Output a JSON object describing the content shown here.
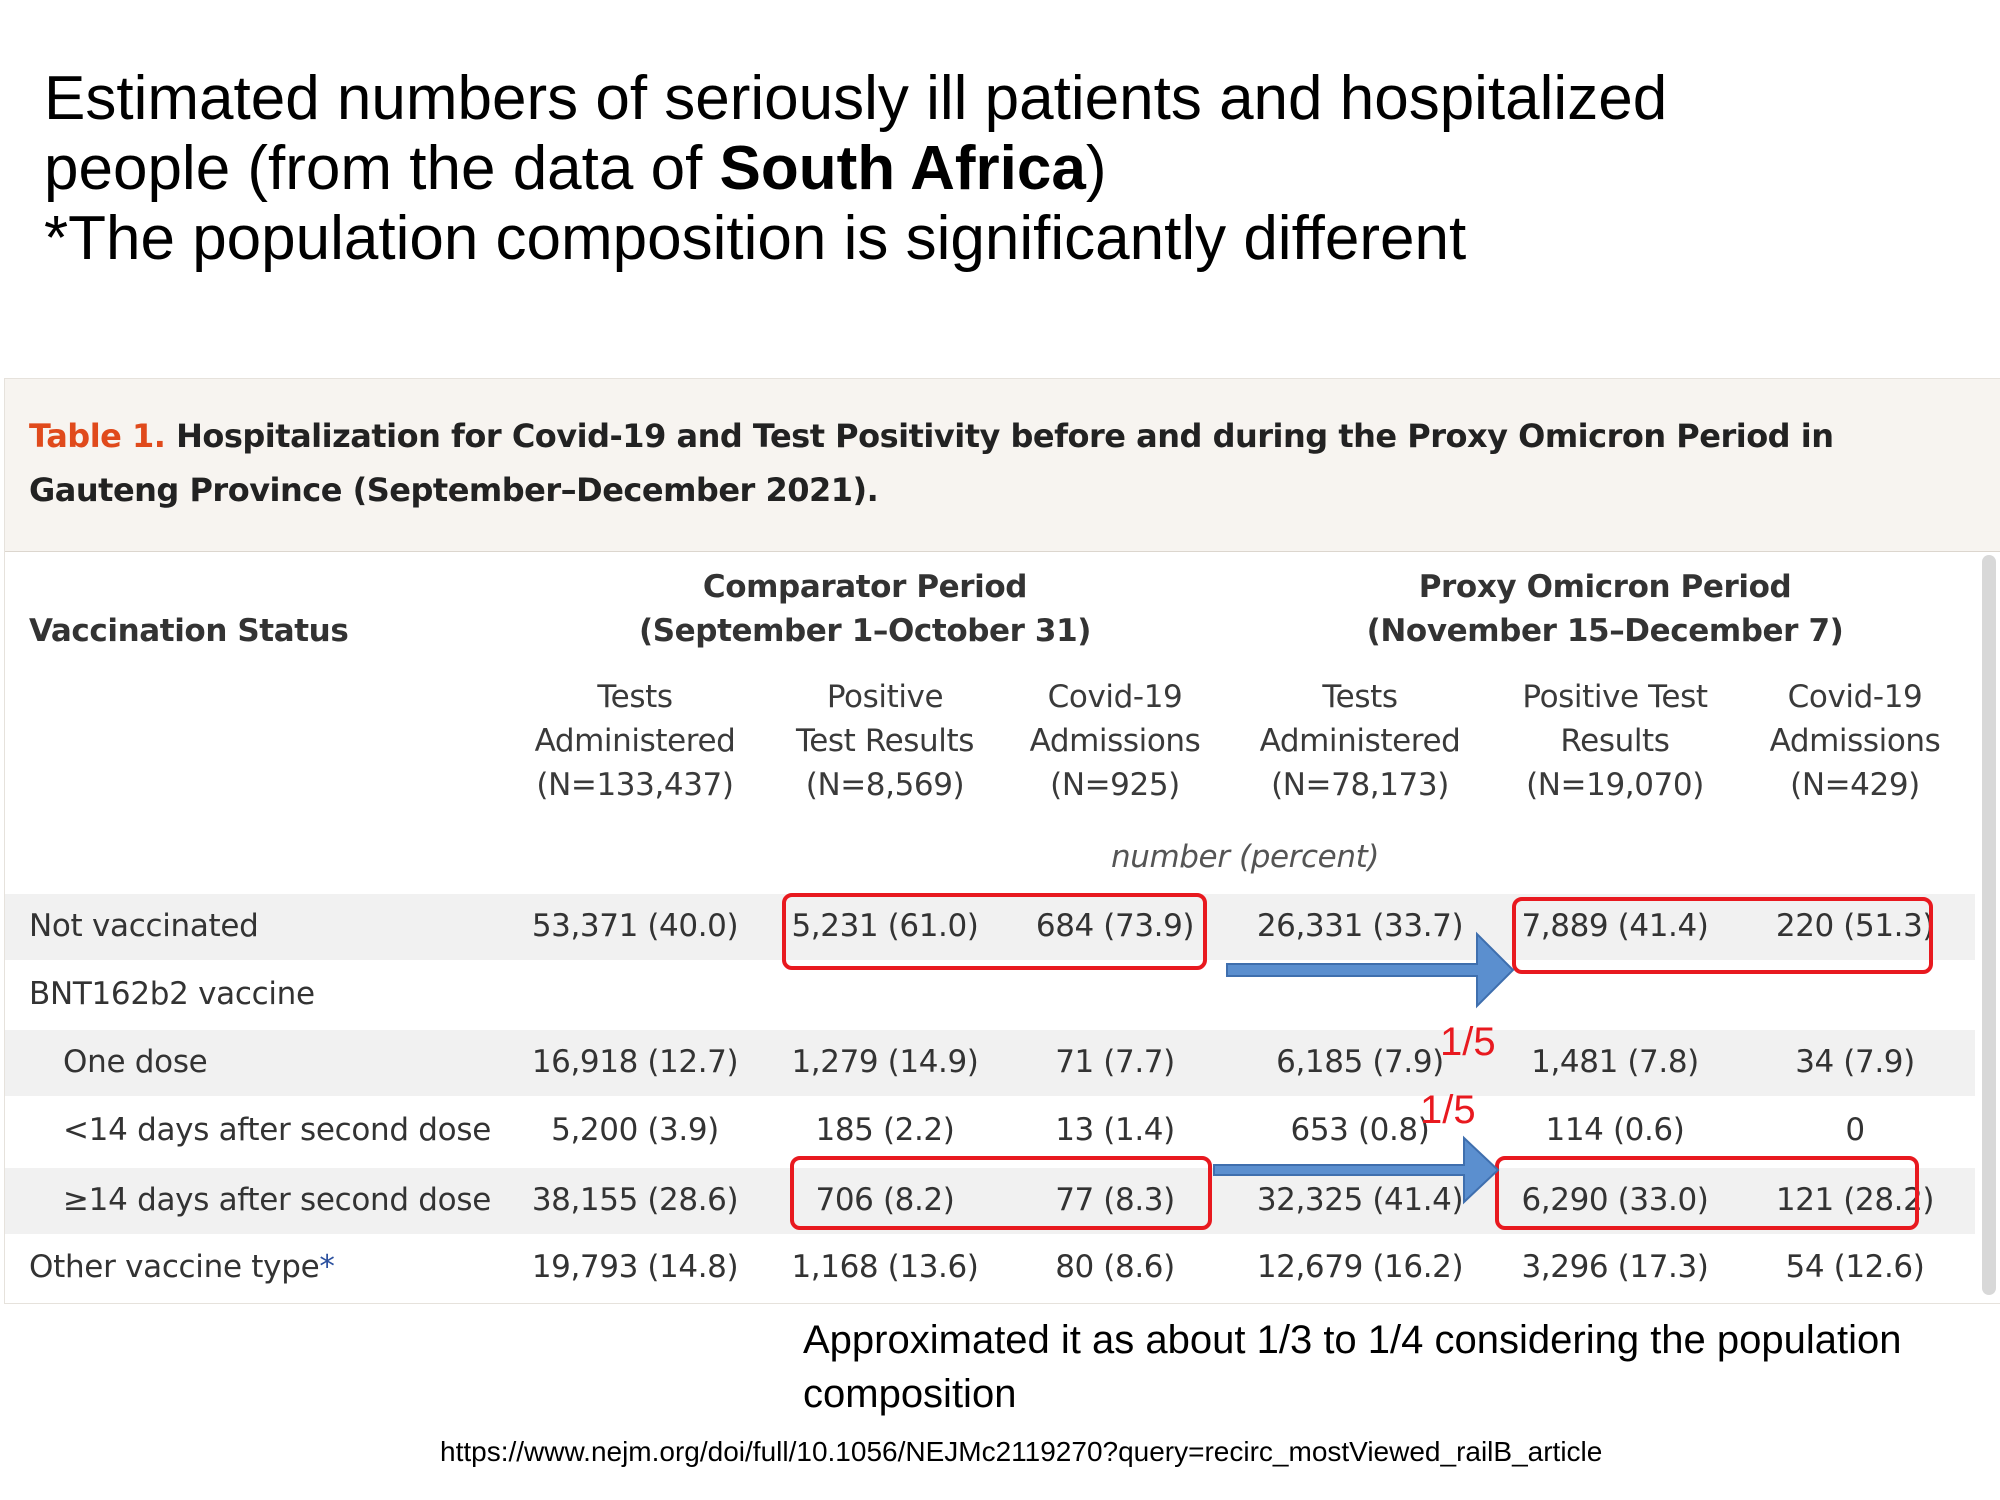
{
  "slide": {
    "title_line1": "Estimated numbers of seriously ill patients and hospitalized",
    "title_line2_pre": "people (from the data of ",
    "title_line2_bold": "South Africa",
    "title_line2_post": ")",
    "title_line3": "*The population composition is significantly different"
  },
  "table": {
    "caption_label": "Table 1.",
    "caption_text": "Hospitalization for Covid-19 and Test Positivity before and during the Proxy Omicron Period in Gauteng Province (September–December 2021).",
    "row_header": "Vaccination Status",
    "period1_name": "Comparator Period",
    "period1_dates": "(September 1–October 31)",
    "period2_name": "Proxy Omicron Period",
    "period2_dates": "(November 15–December 7)",
    "columns": [
      {
        "l1": "Tests",
        "l2": "Administered",
        "l3": "(N=133,437)"
      },
      {
        "l1": "Positive",
        "l2": "Test Results",
        "l3": "(N=8,569)"
      },
      {
        "l1": "Covid-19",
        "l2": "Admissions",
        "l3": "(N=925)"
      },
      {
        "l1": "Tests",
        "l2": "Administered",
        "l3": "(N=78,173)"
      },
      {
        "l1": "Positive Test",
        "l2": "Results",
        "l3": "(N=19,070)"
      },
      {
        "l1": "Covid-19",
        "l2": "Admissions",
        "l3": "(N=429)"
      }
    ],
    "units": "number (percent)",
    "rows": [
      {
        "label": "Not vaccinated",
        "cells": [
          "53,371 (40.0)",
          "5,231 (61.0)",
          "684 (73.9)",
          "26,331 (33.7)",
          "7,889 (41.4)",
          "220 (51.3)"
        ]
      },
      {
        "label": "BNT162b2 vaccine",
        "cells": [
          "",
          "",
          "",
          "",
          "",
          ""
        ]
      },
      {
        "label": "One dose",
        "cells": [
          "16,918 (12.7)",
          "1,279 (14.9)",
          "71 (7.7)",
          "6,185 (7.9)",
          "1,481 (7.8)",
          "34 (7.9)"
        ]
      },
      {
        "label": "<14 days after second dose",
        "cells": [
          "5,200 (3.9)",
          "185 (2.2)",
          "13 (1.4)",
          "653 (0.8)",
          "114 (0.6)",
          "0"
        ]
      },
      {
        "label": "≥14 days after second dose",
        "cells": [
          "38,155 (28.6)",
          "706 (8.2)",
          "77 (8.3)",
          "32,325 (41.4)",
          "6,290 (33.0)",
          "121 (28.2)"
        ]
      },
      {
        "label": "Other vaccine type",
        "label_mark": "*",
        "cells": [
          "19,793 (14.8)",
          "1,168 (13.6)",
          "80 (8.6)",
          "12,679 (16.2)",
          "3,296 (17.3)",
          "54 (12.6)"
        ]
      }
    ]
  },
  "annotations": {
    "ratio_upper": "1/5",
    "ratio_lower": "1/5",
    "note": "Approximated it as about 1/3 to 1/4 considering the population composition",
    "source": "https://www.nejm.org/doi/full/10.1056/NEJMc2119270?query=recirc_mostViewed_railB_article",
    "highlight_color": "#e8191f",
    "arrow_color": "#5b8fcf"
  }
}
